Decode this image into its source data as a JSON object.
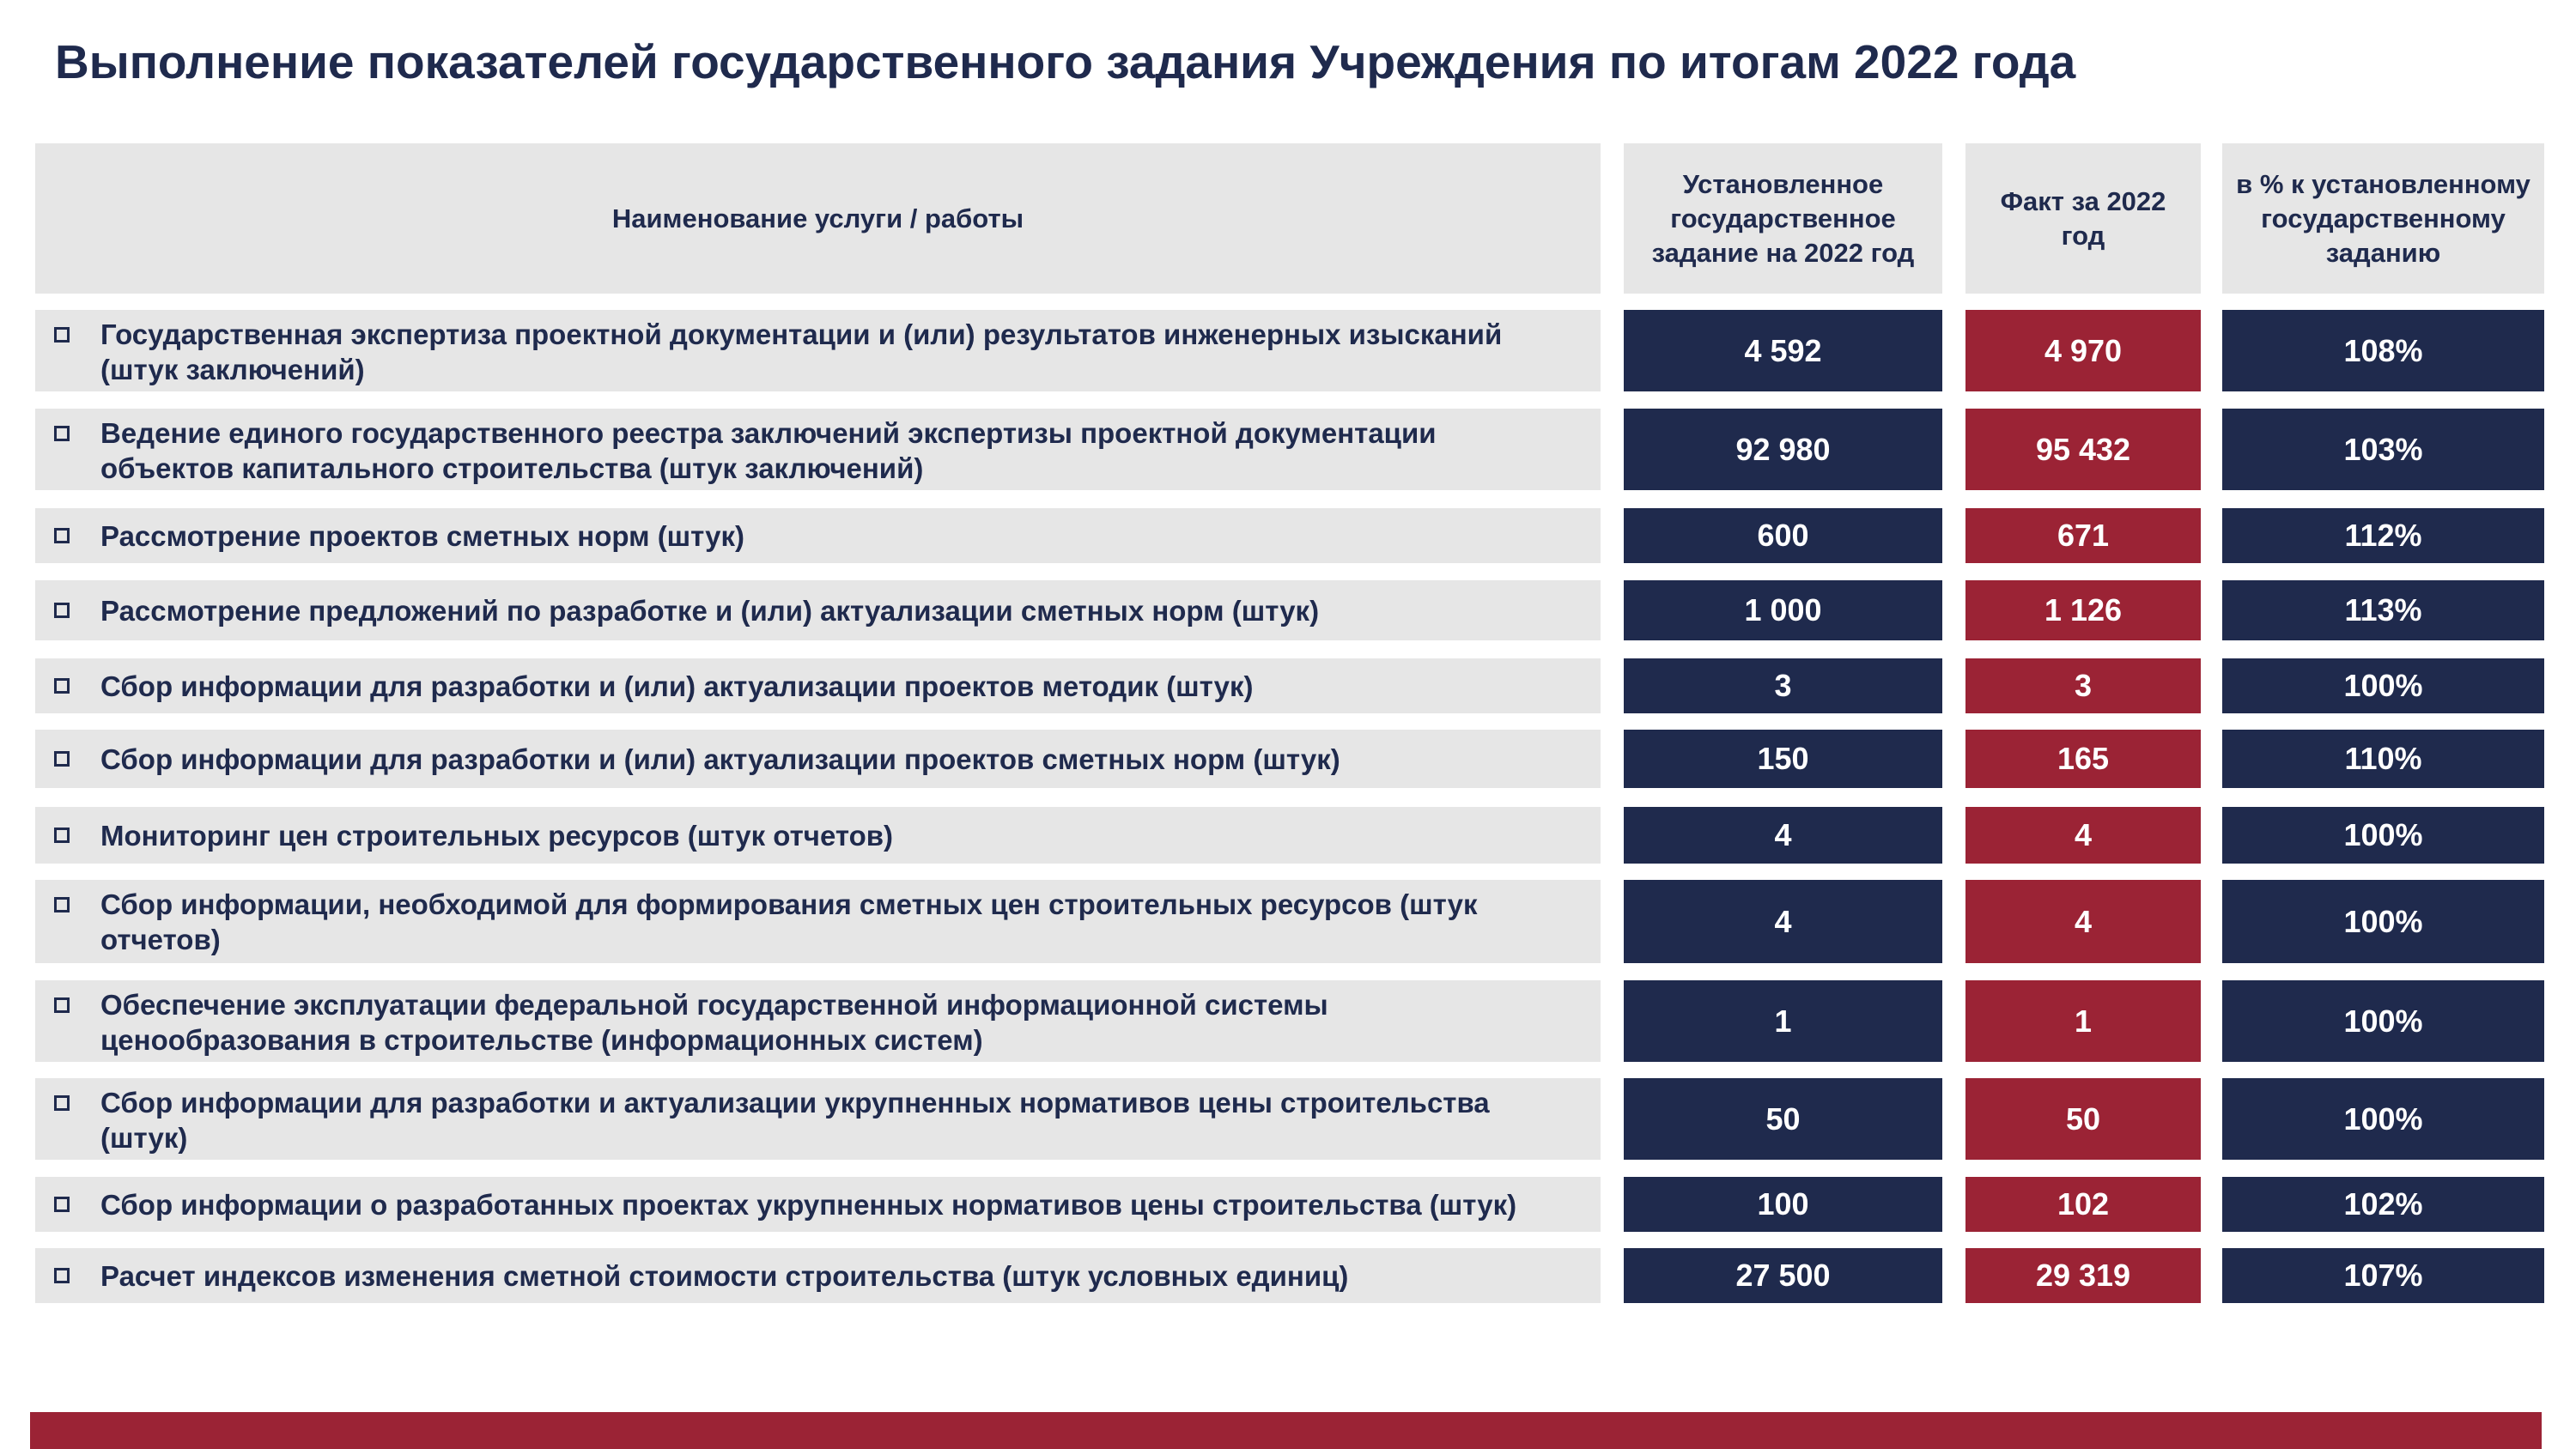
{
  "header": {
    "title": "Выполнение показателей государственного задания Учреждения по итогам 2022 года"
  },
  "table": {
    "columns": [
      "Наименование услуги / работы",
      "Установленное государственное задание на 2022 год",
      "Факт за 2022 год",
      "в % к установленному государственному заданию"
    ],
    "rows": [
      [
        "Государственная экспертиза проектной документации и (или) результатов инженерных изысканий (штук заключений)",
        "4 592",
        "4 970",
        "108%"
      ],
      [
        "Ведение единого государственного реестра заключений экспертизы проектной документации объектов капитального строительства (штук заключений)",
        "92 980",
        "95 432",
        "103%"
      ],
      [
        "Рассмотрение проектов сметных норм (штук)",
        "600",
        "671",
        "112%"
      ],
      [
        "Рассмотрение предложений по разработке и (или) актуализации сметных норм (штук)",
        "1 000",
        "1 126",
        "113%"
      ],
      [
        "Сбор информации для разработки и (или) актуализации проектов методик (штук)",
        "3",
        "3",
        "100%"
      ],
      [
        "Сбор информации для разработки и (или) актуализации проектов сметных норм (штук)",
        "150",
        "165",
        "110%"
      ],
      [
        "Мониторинг цен строительных ресурсов (штук отчетов)",
        "4",
        "4",
        "100%"
      ],
      [
        "Сбор информации, необходимой для формирования сметных цен строительных ресурсов (штук отчетов)",
        "4",
        "4",
        "100%"
      ],
      [
        "Обеспечение эксплуатации федеральной государственной информационной системы ценообразования в строительстве (информационных систем)",
        "1",
        "1",
        "100%"
      ],
      [
        "Сбор информации для разработки и актуализации укрупненных нормативов цены строительства (штук)",
        "50",
        "50",
        "100%"
      ],
      [
        "Сбор информации о разработанных проектах укрупненных нормативов цены строительства (штук)",
        "100",
        "102",
        "102%"
      ],
      [
        "Расчет индексов изменения сметной стоимости строительства (штук условных единиц)",
        "27 500",
        "29 319",
        "107%"
      ]
    ]
  }
}
